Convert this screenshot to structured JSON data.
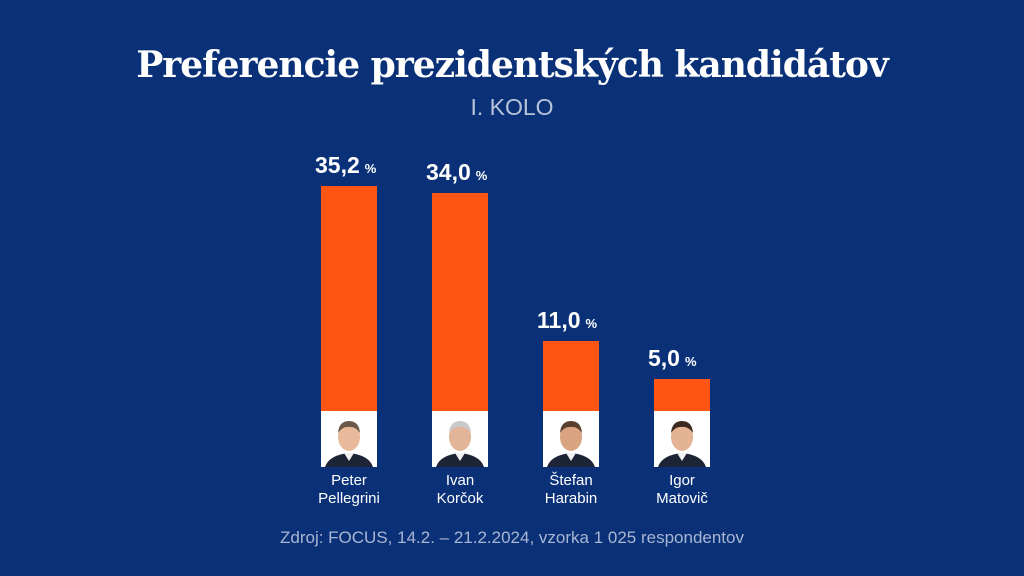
{
  "chart_data": {
    "type": "bar",
    "title": "Preferencie prezidentských kandidátov",
    "subtitle": "I. KOLO",
    "categories": [
      {
        "first": "Peter",
        "last": "Pellegrini"
      },
      {
        "first": "Ivan",
        "last": "Korčok"
      },
      {
        "first": "Štefan",
        "last": "Harabin"
      },
      {
        "first": "Igor",
        "last": "Matovič"
      }
    ],
    "values": [
      35.2,
      34.0,
      11.0,
      5.0
    ],
    "labels": [
      "35,2",
      "34,0",
      "11,0",
      "5,0"
    ],
    "unit": "%",
    "bar_color": "#ff5514",
    "xlabel": "",
    "ylabel": "",
    "ylim": [
      0,
      40
    ],
    "grid": false,
    "source": "Zdroj: FOCUS, 14.2. – 21.2.2024, vzorka 1 025 respondentov"
  }
}
